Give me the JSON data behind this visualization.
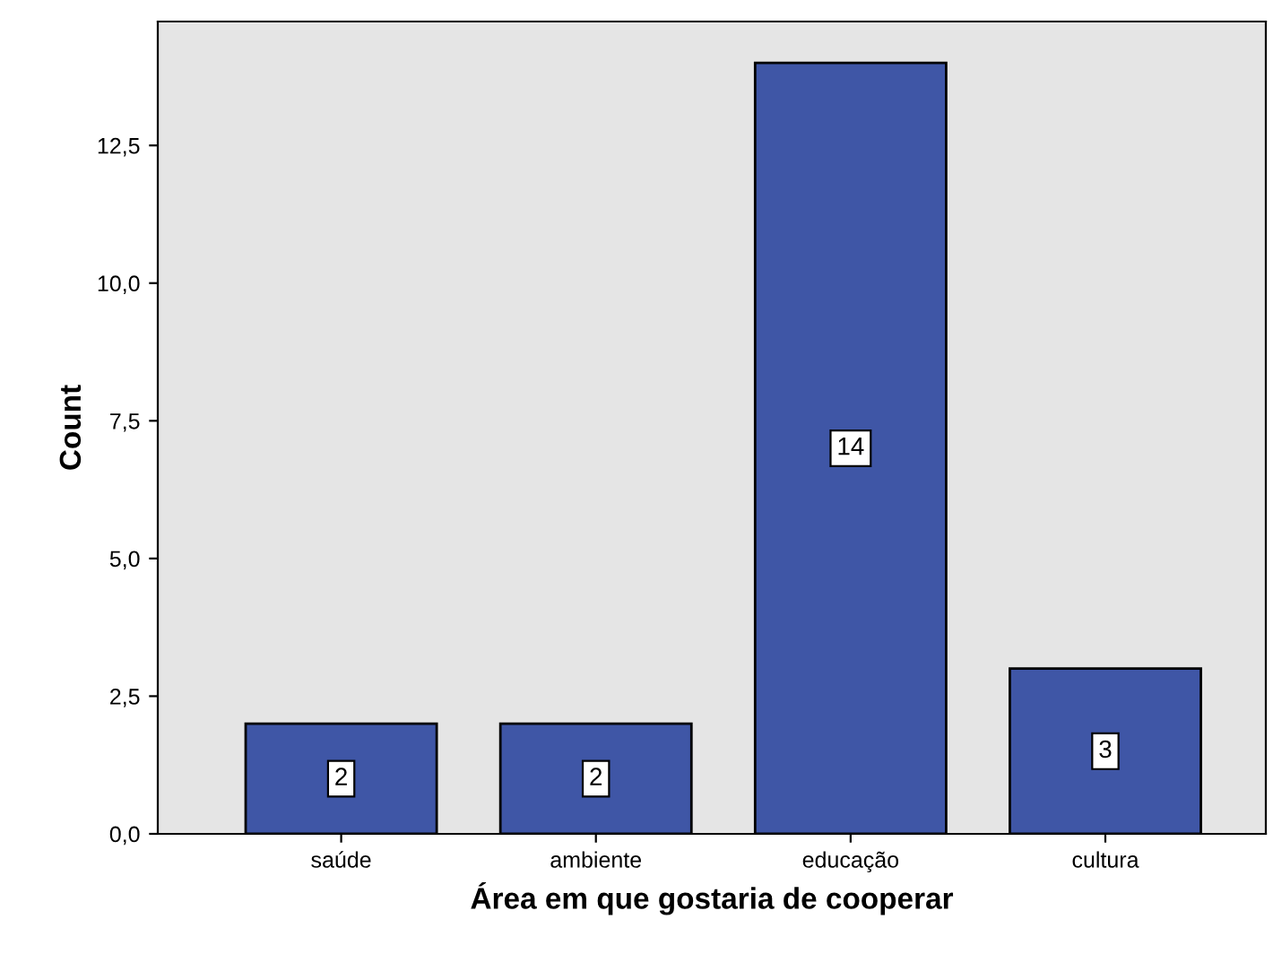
{
  "chart_data": {
    "type": "bar",
    "xlabel": "Área em que gostaria de cooperar",
    "ylabel": "Count",
    "categories": [
      "saúde",
      "ambiente",
      "educação",
      "cultura"
    ],
    "values": [
      2,
      2,
      14,
      3
    ],
    "color": "#3f56a6",
    "data_labels": true,
    "ylim": [
      0,
      14.75
    ],
    "yticks": [
      {
        "value": 0,
        "label": "0,0"
      },
      {
        "value": 2.5,
        "label": "2,5"
      },
      {
        "value": 5,
        "label": "5,0"
      },
      {
        "value": 7.5,
        "label": "7,5"
      },
      {
        "value": 10,
        "label": "10,0"
      },
      {
        "value": 12.5,
        "label": "12,5"
      }
    ],
    "grid": false,
    "legend": false
  }
}
